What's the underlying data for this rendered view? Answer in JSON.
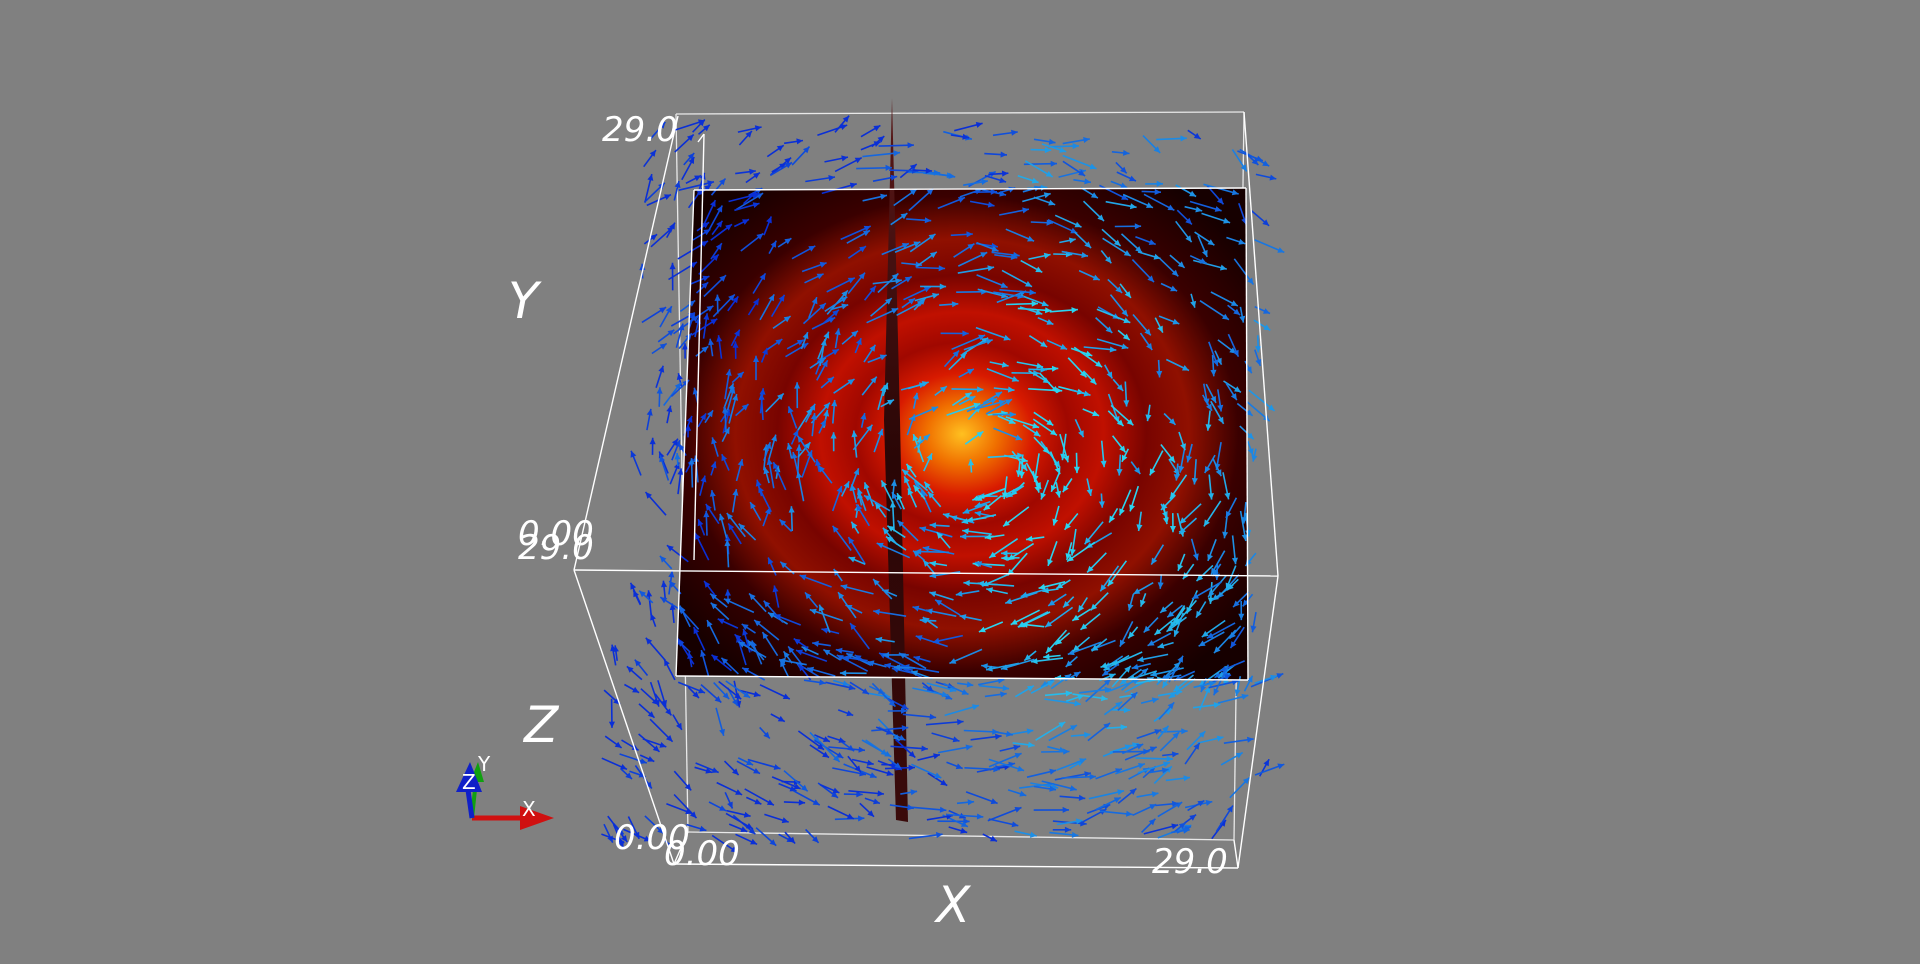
{
  "axes": {
    "x": {
      "title": "X",
      "min_label": "0.00",
      "max_label": "29.0"
    },
    "y": {
      "title": "Y",
      "min_label": "0.00",
      "max_label": "29.0"
    },
    "z": {
      "title": "Z",
      "min_label": "0.00",
      "max_label": "29.0"
    }
  },
  "orientation_triad": {
    "x": "X",
    "y": "Y",
    "z": "Z"
  },
  "colors": {
    "background": "#808080",
    "box_outline": "#ffffff",
    "vector_low": "#0a2fd6",
    "vector_high": "#2ad4f0",
    "slice_low": "#1a0000",
    "slice_high": "#ffb000",
    "triad_x": "#d01010",
    "triad_y": "#10a010",
    "triad_z": "#1020c8"
  }
}
